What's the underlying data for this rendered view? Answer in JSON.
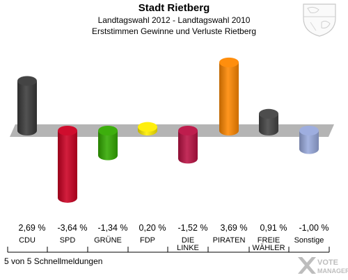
{
  "header": {
    "title": "Stadt Rietberg",
    "subtitle1": "Landtagswahl 2012 - Landtagswahl 2010",
    "subtitle2": "Erststimmen Gewinne und Verluste Rietberg"
  },
  "footer": {
    "note": "5 von 5 Schnellmeldungen",
    "watermark_text": "VOTE MANAGER"
  },
  "chart_data": {
    "type": "bar",
    "categories": [
      "CDU",
      "SPD",
      "GRÜNE",
      "FDP",
      "DIE LINKE",
      "PIRATEN",
      "FREIE WÄHLER",
      "Sonstige"
    ],
    "category_lines": [
      [
        "CDU"
      ],
      [
        "SPD"
      ],
      [
        "GRÜNE"
      ],
      [
        "FDP"
      ],
      [
        "DIE",
        "LINKE"
      ],
      [
        "PIRATEN"
      ],
      [
        "FREIE",
        "WÄHLER"
      ],
      [
        "Sonstige"
      ]
    ],
    "values": [
      2.69,
      -3.64,
      -1.34,
      0.2,
      -1.52,
      3.69,
      0.91,
      -1.0
    ],
    "value_labels": [
      "2,69 %",
      "-3,64 %",
      "-1,34 %",
      "0,20 %",
      "-1,52 %",
      "3,69 %",
      "0,91 %",
      "-1,00 %"
    ],
    "colors": [
      "#3a3a3a",
      "#cc0022",
      "#33aa00",
      "#ffee00",
      "#bb1144",
      "#ff8800",
      "#444444",
      "#99aadd"
    ],
    "baseline": 0
  }
}
